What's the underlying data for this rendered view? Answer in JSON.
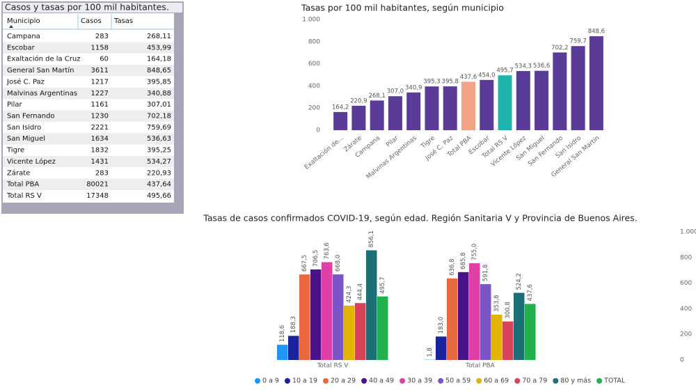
{
  "table": {
    "title": "Casos y tasas por 100 mil habitantes.",
    "columns": [
      "Municipio",
      "Casos",
      "Tasas"
    ],
    "rows": [
      [
        "Campana",
        "283",
        "268,11"
      ],
      [
        "Escobar",
        "1158",
        "453,99"
      ],
      [
        "Exaltación de la Cruz",
        "60",
        "164,18"
      ],
      [
        "General San Martín",
        "3611",
        "848,65"
      ],
      [
        "José C. Paz",
        "1217",
        "395,85"
      ],
      [
        "Malvinas Argentinas",
        "1227",
        "340,88"
      ],
      [
        "Pilar",
        "1161",
        "307,01"
      ],
      [
        "San Fernando",
        "1230",
        "702,18"
      ],
      [
        "San Isidro",
        "2221",
        "759,69"
      ],
      [
        "San Miguel",
        "1634",
        "536,63"
      ],
      [
        "Tigre",
        "1832",
        "395,25"
      ],
      [
        "Vicente López",
        "1431",
        "534,27"
      ],
      [
        "Zárate",
        "283",
        "220,93"
      ],
      [
        "Total PBA",
        "80021",
        "437,64"
      ],
      [
        "Total RS V",
        "17348",
        "495,66"
      ]
    ]
  },
  "chart_data": [
    {
      "type": "bar",
      "title": "Tasas por 100 mil habitantes, según municipio",
      "categories": [
        "Exaltación de...",
        "Zárate",
        "Campana",
        "Pilar",
        "Malvinas Argentinas",
        "Tigre",
        "José C. Paz",
        "Total PBA",
        "Escobar",
        "Total RS V",
        "Vicente López",
        "San Miguel",
        "San Fernando",
        "San Isidro",
        "General San Martín"
      ],
      "values": [
        164.2,
        220.9,
        268.1,
        307.0,
        340.9,
        395.3,
        395.8,
        437.6,
        454.0,
        495.7,
        534.3,
        536.6,
        702.2,
        759.7,
        848.6
      ],
      "value_labels": [
        "164,2",
        "220,9",
        "268,1",
        "307,0",
        "340,9",
        "395,3",
        "395,8",
        "437,6",
        "454,0",
        "495,7",
        "534,3",
        "536,6",
        "702,2",
        "759,7",
        "848,6"
      ],
      "colors": [
        "#5a3b97",
        "#5a3b97",
        "#5a3b97",
        "#5a3b97",
        "#5a3b97",
        "#5a3b97",
        "#5a3b97",
        "#f2a285",
        "#5a3b97",
        "#1fb3ad",
        "#5a3b97",
        "#5a3b97",
        "#5a3b97",
        "#5a3b97",
        "#5a3b97"
      ],
      "ylim": [
        0,
        1000
      ],
      "yticks": [
        0,
        200,
        400,
        600,
        800,
        {
          "value": 1000,
          "label": "1.000"
        }
      ]
    },
    {
      "type": "bar",
      "title": "Tasas de casos confirmados COVID-19, según edad. Región Sanitaria V y Provincia de Buenos Aires.",
      "categories": [
        "Total RS V",
        "Total PBA"
      ],
      "series": [
        {
          "name": "0 a 9",
          "color": "#2196f3",
          "values": [
            118.6,
            1.8
          ],
          "value_labels": [
            "118,6",
            "1,8"
          ]
        },
        {
          "name": "10 a 19",
          "color": "#1a239e",
          "values": [
            188.3,
            183.0
          ],
          "value_labels": [
            "188,3",
            "183,0"
          ]
        },
        {
          "name": "20 a 29",
          "color": "#e8693b",
          "values": [
            667.5,
            636.8
          ],
          "value_labels": [
            "667,5",
            "636,8"
          ]
        },
        {
          "name": "40 a 49",
          "color": "#4a1387",
          "values": [
            706.5,
            685.8
          ],
          "value_labels": [
            "706,5",
            "685,8"
          ]
        },
        {
          "name": "30 a 39",
          "color": "#e040a6",
          "values": [
            763.6,
            755.0
          ],
          "value_labels": [
            "763,6",
            "755,0"
          ]
        },
        {
          "name": "50 a 59",
          "color": "#7b55c6",
          "values": [
            668.0,
            591.8
          ],
          "value_labels": [
            "668,0",
            "591,8"
          ]
        },
        {
          "name": "60 a 69",
          "color": "#e2b300",
          "values": [
            424.3,
            353.8
          ],
          "value_labels": [
            "424,3",
            "353,8"
          ]
        },
        {
          "name": "70 a 79",
          "color": "#d9435a",
          "values": [
            444.4,
            300.8
          ],
          "value_labels": [
            "444,4",
            "300,8"
          ]
        },
        {
          "name": "80 y más",
          "color": "#1b6f76",
          "values": [
            856.1,
            524.2
          ],
          "value_labels": [
            "856,1",
            "524,2"
          ]
        },
        {
          "name": "TOTAL",
          "color": "#22b14c",
          "values": [
            495.7,
            437.6
          ],
          "value_labels": [
            "495,7",
            "437,6"
          ]
        }
      ],
      "ylim": [
        0,
        1000
      ],
      "yticks": [
        0,
        200,
        400,
        600,
        800,
        {
          "value": 1000,
          "label": "1.000"
        }
      ]
    }
  ]
}
